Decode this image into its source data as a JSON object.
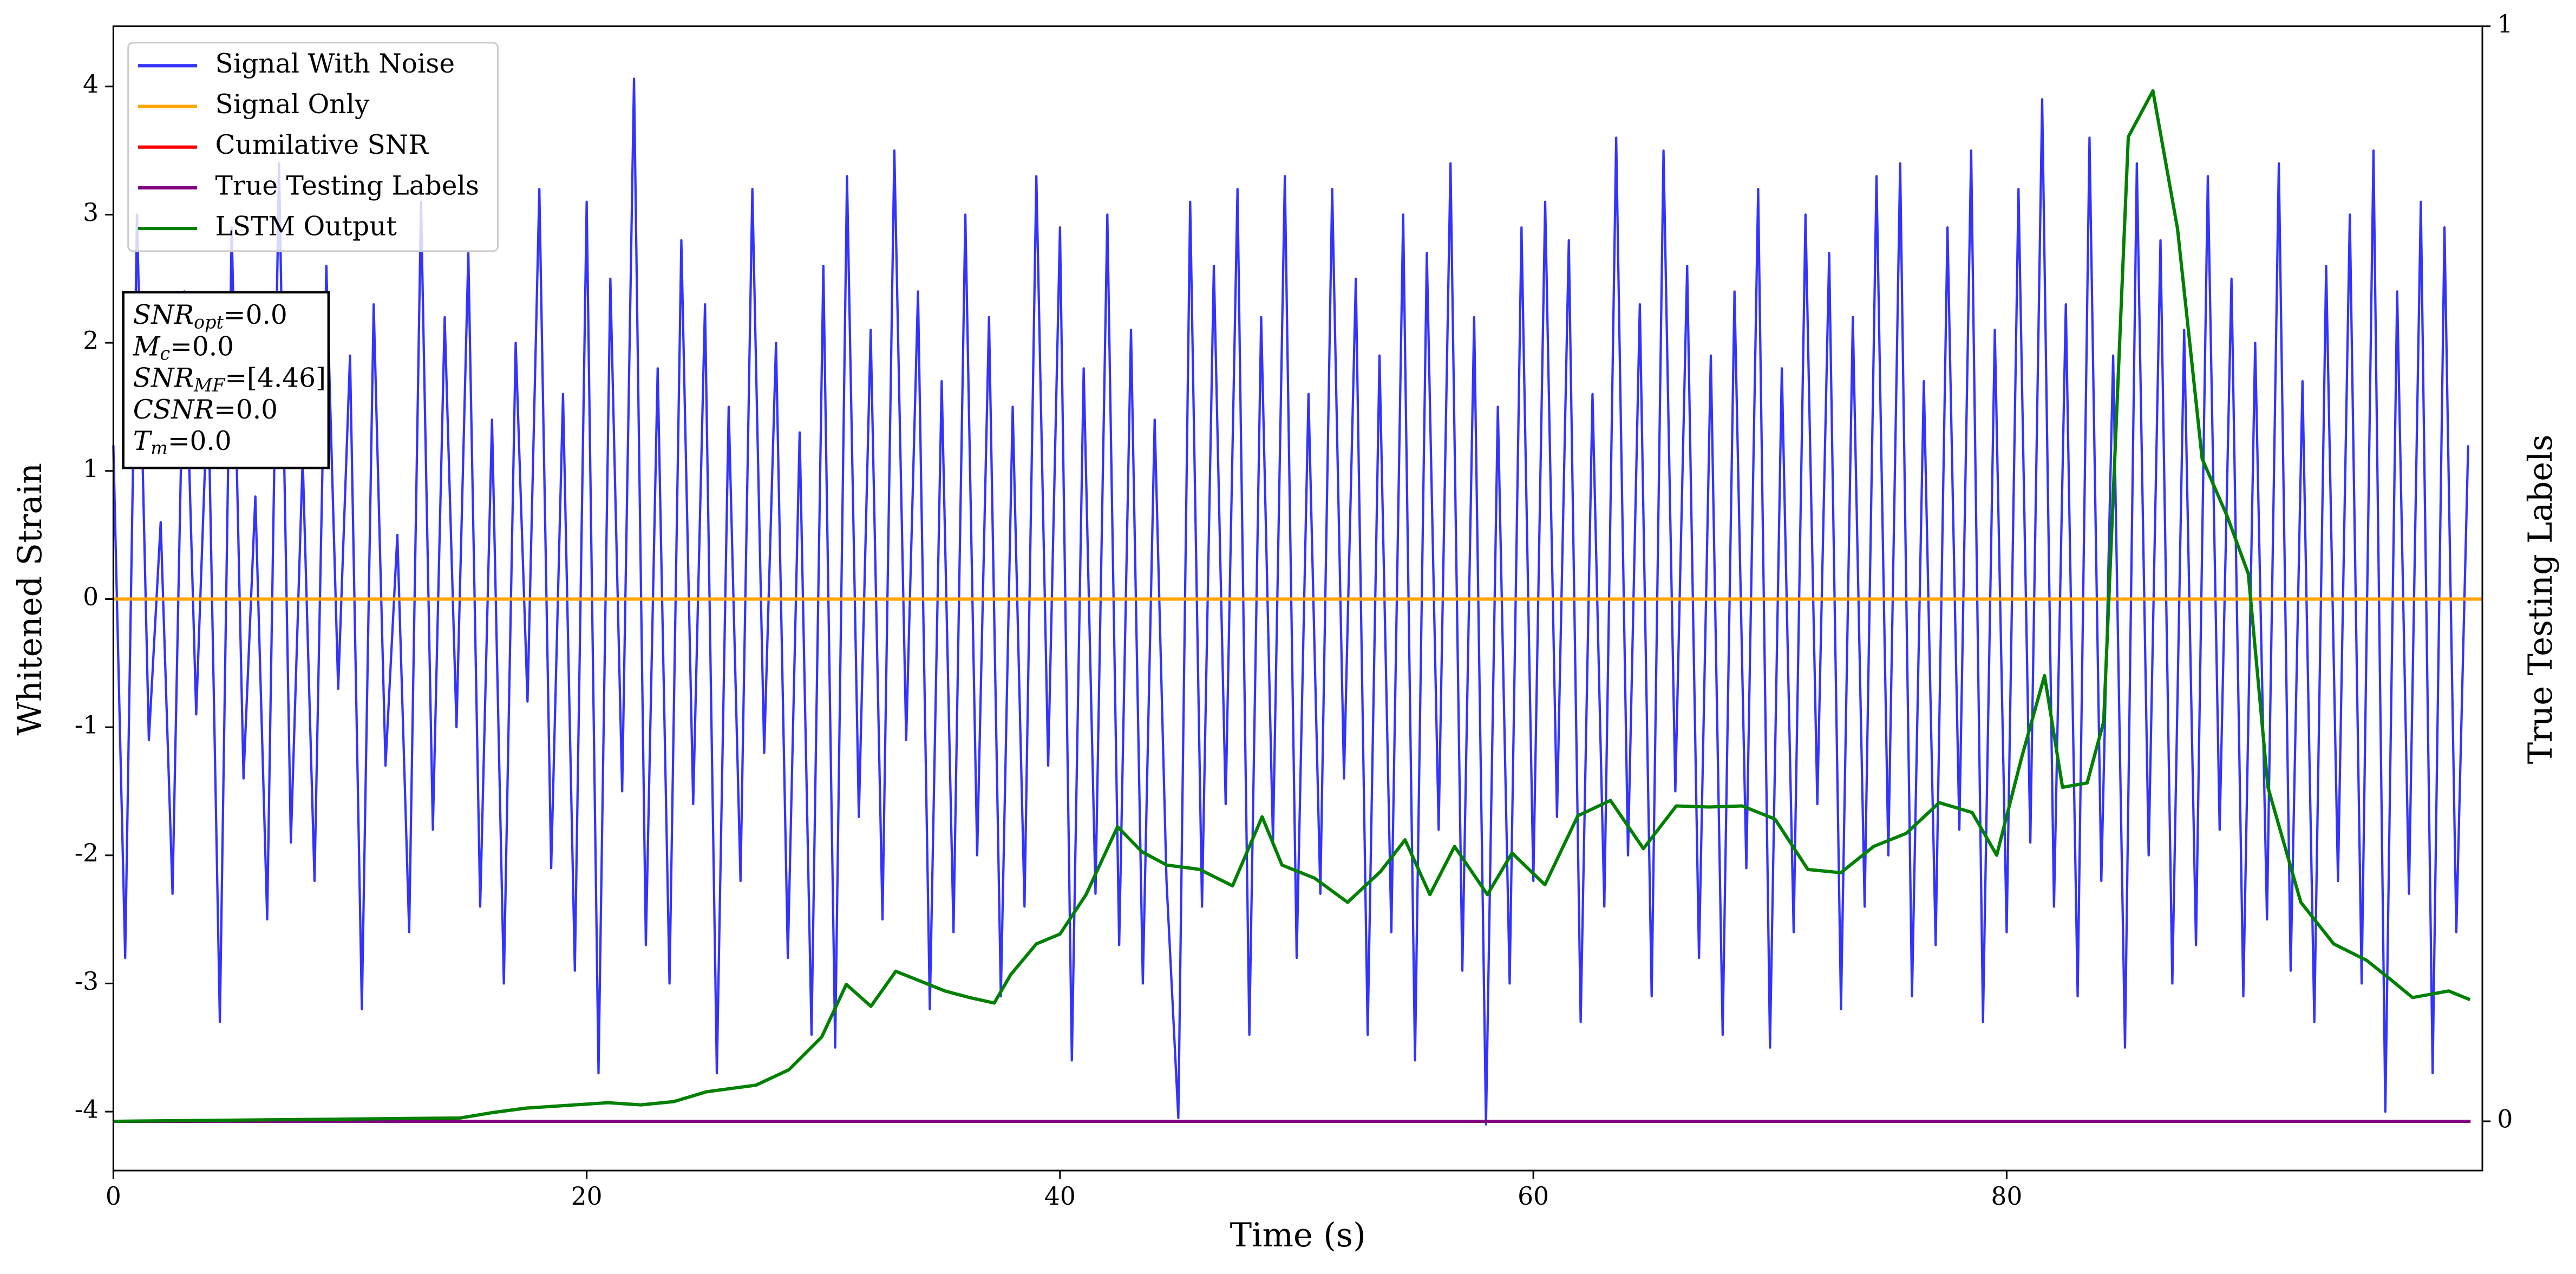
{
  "chart_data": {
    "type": "line",
    "xlabel": "Time (s)",
    "ylabel": "Whitened Strain",
    "y2label": "True Testing Labels",
    "xlim": [
      0,
      100.1
    ],
    "ylim": [
      -4.46,
      4.47
    ],
    "y2lim": [
      -0.045,
      1.0
    ],
    "xticks": [
      0,
      20,
      40,
      60,
      80
    ],
    "yticks": [
      -4,
      -3,
      -2,
      -1,
      0,
      1,
      2,
      3,
      4
    ],
    "y2ticks": [
      0,
      1
    ],
    "legend": "upper left",
    "annotation": [
      {
        "main": "SNR",
        "sub": "opt",
        "rest": "=0.0"
      },
      {
        "main": "M",
        "sub": "c",
        "rest": "=0.0"
      },
      {
        "main": "SNR",
        "sub": "MF",
        "rest": "=[4.46]"
      },
      {
        "main": "CSNR",
        "rest": "=0.0"
      },
      {
        "main": "T",
        "sub": "m",
        "rest": "=0.0"
      }
    ],
    "series": [
      {
        "name": "Signal With Noise",
        "color": "#3333ff",
        "x": [
          0,
          0.5,
          1,
          1.5,
          2,
          2.5,
          3,
          3.5,
          4,
          4.5,
          5,
          5.5,
          6,
          6.5,
          7,
          7.5,
          8,
          8.5,
          9,
          9.5,
          10,
          10.5,
          11,
          11.5,
          12,
          12.5,
          13,
          13.5,
          14,
          14.5,
          15,
          15.5,
          16,
          16.5,
          17,
          17.5,
          18,
          18.5,
          19,
          19.5,
          20,
          20.5,
          21,
          21.5,
          22,
          22.5,
          23,
          23.5,
          24,
          24.5,
          25,
          25.5,
          26,
          26.5,
          27,
          27.5,
          28,
          28.5,
          29,
          29.5,
          30,
          30.5,
          31,
          31.5,
          32,
          32.5,
          33,
          33.5,
          34,
          34.5,
          35,
          35.5,
          36,
          36.5,
          37,
          37.5,
          38,
          38.5,
          39,
          39.5,
          40,
          40.5,
          41,
          41.5,
          42,
          42.5,
          43,
          43.5,
          44,
          44.5,
          45,
          45.5,
          46,
          46.5,
          47,
          47.5,
          48,
          48.5,
          49,
          49.5,
          50,
          50.5,
          51,
          51.5,
          52,
          52.5,
          53,
          53.5,
          54,
          54.5,
          55,
          55.5,
          56,
          56.5,
          57,
          57.5,
          58,
          58.5,
          59,
          59.5,
          60,
          60.5,
          61,
          61.5,
          62,
          62.5,
          63,
          63.5,
          64,
          64.5,
          65,
          65.5,
          66,
          66.5,
          67,
          67.5,
          68,
          68.5,
          69,
          69.5,
          70,
          70.5,
          71,
          71.5,
          72,
          72.5,
          73,
          73.5,
          74,
          74.5,
          75,
          75.5,
          76,
          76.5,
          77,
          77.5,
          78,
          78.5,
          79,
          79.5,
          80,
          80.5,
          81,
          81.5,
          82,
          82.5,
          83,
          83.5,
          84,
          84.5,
          85,
          85.5,
          86,
          86.5,
          87,
          87.5,
          88,
          88.5,
          89,
          89.5,
          90,
          90.5,
          91,
          91.5,
          92,
          92.5,
          93,
          93.5,
          94,
          94.5,
          95,
          95.5,
          96,
          96.5,
          97,
          97.5,
          98,
          98.5,
          99,
          99.5
        ],
        "values": [
          1.2,
          -2.8,
          3.0,
          -1.1,
          0.6,
          -2.3,
          2.4,
          -0.9,
          1.7,
          -3.3,
          2.9,
          -1.4,
          0.8,
          -2.5,
          3.4,
          -1.9,
          1.1,
          -2.2,
          2.6,
          -0.7,
          1.9,
          -3.2,
          2.3,
          -1.3,
          0.5,
          -2.6,
          3.1,
          -1.8,
          2.2,
          -1.0,
          2.7,
          -2.4,
          1.4,
          -3.0,
          2.0,
          -0.8,
          3.2,
          -2.1,
          1.6,
          -2.9,
          3.1,
          -3.7,
          2.5,
          -1.5,
          4.06,
          -2.7,
          1.8,
          -3.0,
          2.8,
          -1.6,
          2.3,
          -3.7,
          1.5,
          -2.2,
          3.2,
          -1.2,
          2.0,
          -2.8,
          1.3,
          -3.4,
          2.6,
          -3.5,
          3.3,
          -1.7,
          2.1,
          -2.5,
          3.5,
          -1.1,
          2.4,
          -3.2,
          1.7,
          -2.6,
          3.0,
          -2.0,
          2.2,
          -3.1,
          1.5,
          -2.4,
          3.3,
          -1.3,
          2.9,
          -3.6,
          1.8,
          -2.3,
          3.0,
          -2.7,
          2.1,
          -3.0,
          1.4,
          -2.2,
          -4.05,
          3.1,
          -2.4,
          2.6,
          -1.6,
          3.2,
          -3.4,
          2.2,
          -1.9,
          3.3,
          -2.8,
          1.6,
          -2.3,
          3.2,
          -1.4,
          2.5,
          -3.4,
          1.9,
          -2.6,
          3.0,
          -3.6,
          2.7,
          -1.8,
          3.4,
          -2.9,
          2.2,
          -4.1,
          1.5,
          -3.0,
          2.9,
          -2.2,
          3.1,
          -1.7,
          2.8,
          -3.3,
          1.6,
          -2.4,
          3.6,
          -2.0,
          2.3,
          -3.1,
          3.5,
          -1.5,
          2.6,
          -2.8,
          1.9,
          -3.4,
          2.4,
          -2.1,
          3.2,
          -3.5,
          1.8,
          -2.6,
          3.0,
          -1.6,
          2.7,
          -3.2,
          2.2,
          -2.4,
          3.3,
          -2.0,
          3.4,
          -3.1,
          1.7,
          -2.7,
          2.9,
          -1.8,
          3.5,
          -3.3,
          2.1,
          -2.6,
          3.2,
          -1.9,
          3.9,
          -2.4,
          2.3,
          -3.1,
          3.6,
          -2.2,
          1.9,
          -3.5,
          3.4,
          -2.0,
          2.8,
          -3.0,
          2.1,
          -2.7,
          3.3,
          -1.8,
          2.5,
          -3.1,
          2.0,
          -2.5,
          3.4,
          -2.9,
          1.7,
          -3.3,
          2.6,
          -2.2,
          3.0,
          -3.0,
          3.5,
          -4.0,
          2.4,
          -2.3,
          3.1,
          -3.7,
          2.9,
          -2.6,
          1.2
        ]
      },
      {
        "name": "Signal Only",
        "color": "#ffa500",
        "x": [
          0,
          100.1
        ],
        "values": [
          0,
          0
        ]
      },
      {
        "name": "Cumilative SNR",
        "color": "#ff0000",
        "axis": "y2",
        "x": [
          0,
          99.6
        ],
        "values": [
          0,
          0
        ]
      },
      {
        "name": "True Testing Labels",
        "color": "#800080",
        "axis": "y2",
        "x": [
          0,
          99.6
        ],
        "values": [
          0,
          0
        ]
      },
      {
        "name": "LSTM Output",
        "color": "#008000",
        "axis": "y2",
        "x": [
          0,
          14.65,
          16.04,
          17.43,
          19.51,
          20.9,
          22.29,
          23.68,
          25.07,
          27.15,
          28.54,
          29.93,
          30.97,
          32.01,
          33.06,
          34.1,
          35.14,
          36.18,
          37.22,
          37.92,
          39.0,
          40.0,
          41.1,
          42.43,
          43.47,
          44.51,
          45.9,
          47.29,
          48.54,
          49.38,
          50.76,
          52.15,
          53.54,
          54.58,
          55.63,
          56.67,
          58.06,
          59.1,
          60.49,
          61.88,
          63.26,
          64.65,
          66.04,
          67.43,
          68.82,
          70.21,
          71.6,
          72.99,
          74.38,
          75.76,
          77.15,
          78.54,
          79.58,
          80.63,
          81.6,
          82.36,
          83.4,
          84.1,
          85.14,
          86.18,
          87.22,
          88.26,
          89.31,
          90.21,
          91.04,
          92.43,
          93.82,
          95.21,
          96.25,
          97.15,
          98.68,
          99.58
        ],
        "values": [
          0,
          0.003,
          0.008,
          0.012,
          0.015,
          0.017,
          0.015,
          0.018,
          0.027,
          0.033,
          0.047,
          0.077,
          0.125,
          0.105,
          0.137,
          0.128,
          0.119,
          0.113,
          0.108,
          0.134,
          0.162,
          0.171,
          0.207,
          0.269,
          0.246,
          0.234,
          0.23,
          0.215,
          0.278,
          0.234,
          0.222,
          0.2,
          0.228,
          0.257,
          0.207,
          0.251,
          0.207,
          0.245,
          0.216,
          0.279,
          0.293,
          0.249,
          0.288,
          0.287,
          0.288,
          0.276,
          0.23,
          0.227,
          0.251,
          0.263,
          0.291,
          0.282,
          0.243,
          0.332,
          0.407,
          0.305,
          0.309,
          0.365,
          0.899,
          0.941,
          0.815,
          0.605,
          0.553,
          0.5,
          0.305,
          0.2,
          0.162,
          0.147,
          0.129,
          0.113,
          0.119,
          0.111
        ]
      }
    ]
  }
}
